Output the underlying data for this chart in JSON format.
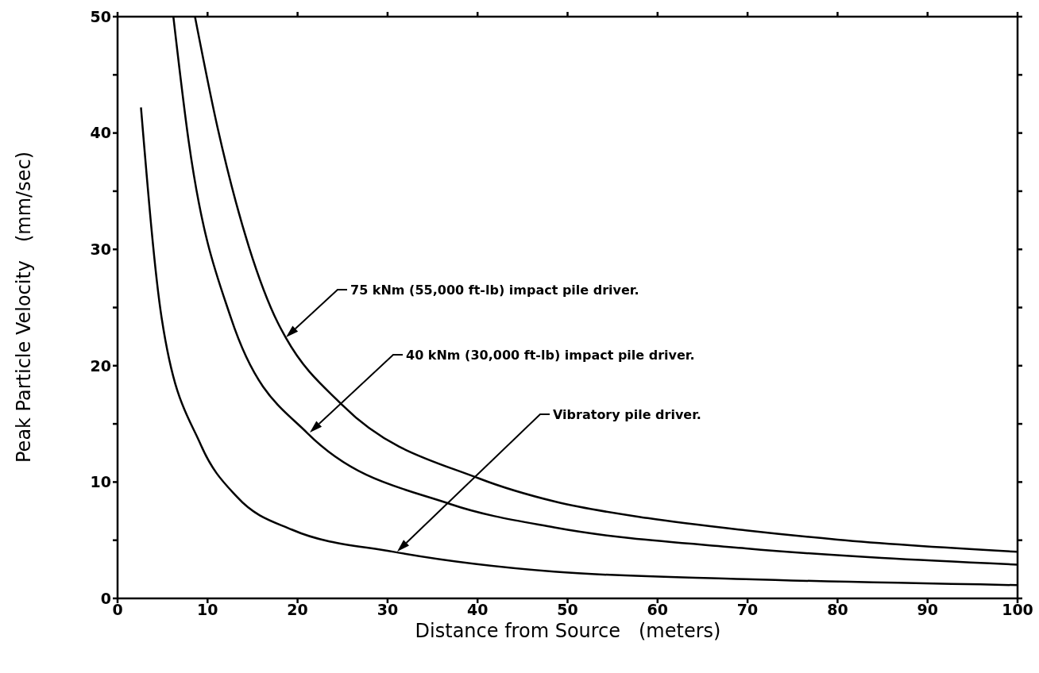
{
  "chart_data": {
    "type": "line",
    "xlabel": "Distance from Source   (meters)",
    "ylabel": "Peak Particle Velocity   (mm/sec)",
    "xlim": [
      0,
      100
    ],
    "xticks": [
      0,
      10,
      20,
      30,
      40,
      50,
      60,
      70,
      80,
      90,
      100
    ],
    "ylim": [
      0,
      50
    ],
    "yticks": [
      0,
      {
        "value": 5,
        "label": null
      },
      10,
      {
        "value": 15,
        "label": null
      },
      20,
      {
        "value": 25,
        "label": null
      },
      30,
      {
        "value": 35,
        "label": null
      },
      40,
      {
        "value": 45,
        "label": null
      },
      50
    ],
    "legend": false,
    "marker": "none",
    "line_style": "solid",
    "series": [
      {
        "color": "#000000",
        "x": [
          8.6,
          11.1,
          14.6,
          17.8,
          18.7,
          25,
          40.2,
          48.7,
          58.9,
          69.8,
          80,
          100
        ],
        "values": [
          50,
          40.5,
          30.2,
          23.7,
          22.4,
          16.6,
          10.3,
          8.3,
          6.9,
          5.85,
          5.05,
          4.0
        ]
      },
      {
        "color": "#000000",
        "x": [
          6.2,
          7.9,
          12.6,
          21.1,
          37,
          48.5,
          69.8,
          100
        ],
        "values": [
          50,
          39.3,
          24.1,
          14.2,
          8.1,
          6.1,
          4.3,
          2.9
        ]
      },
      {
        "color": "#000000",
        "x": [
          2.6,
          4.9,
          9.25,
          13.3,
          19.4,
          30.7,
          48.5,
          69.8,
          100
        ],
        "values": [
          42.2,
          24.1,
          13.2,
          8.7,
          5.9,
          4.0,
          2.3,
          1.66,
          1.14
        ]
      }
    ],
    "annotations": [
      "75 kNm (55,000 ft-lb) impact pile driver.",
      "40 kNm (30,000 ft-lb) impact pile driver.",
      "Vibratory pile driver."
    ]
  }
}
